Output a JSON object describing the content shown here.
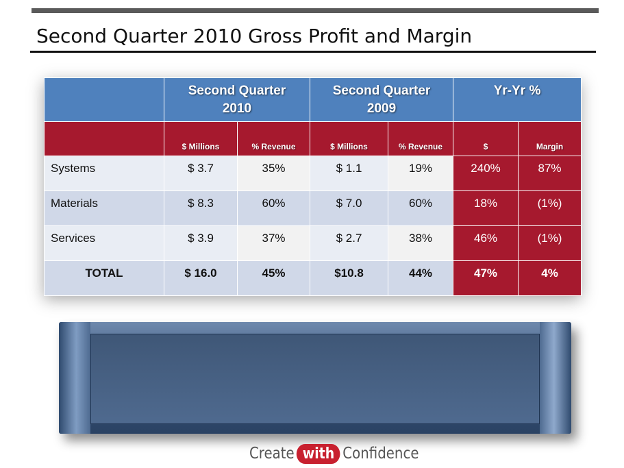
{
  "slide": {
    "title": "Second Quarter 2010 Gross Profit and Margin"
  },
  "table": {
    "group_headers": [
      "",
      "Second Quarter 2010",
      "Second Quarter 2009",
      "Yr-Yr %"
    ],
    "group_header_lines": {
      "q2010": [
        "Second Quarter",
        "2010"
      ],
      "q2009": [
        "Second Quarter",
        "2009"
      ],
      "yryr": "Yr-Yr %"
    },
    "sub_headers": [
      "",
      "$ Millions",
      "% Revenue",
      "$ Millions",
      "% Revenue",
      "$",
      "Margin"
    ],
    "rows": [
      [
        "Systems",
        "$  3.7",
        "35%",
        "$  1.1",
        "19%",
        "240%",
        "87%"
      ],
      [
        "Materials",
        "$  8.3",
        "60%",
        "$  7.0",
        "60%",
        "18%",
        "(1%)"
      ],
      [
        "Services",
        "$  3.9",
        "37%",
        "$  2.7",
        "38%",
        "46%",
        "(1%)"
      ],
      [
        "TOTAL",
        "$ 16.0",
        "45%",
        "$10.8",
        "44%",
        "47%",
        "4%"
      ]
    ]
  },
  "logo": {
    "pre": "Create",
    "mid": "with",
    "post": "Confidence"
  },
  "colors": {
    "header_blue": "#4f81bd",
    "header_red": "#a6192e"
  }
}
